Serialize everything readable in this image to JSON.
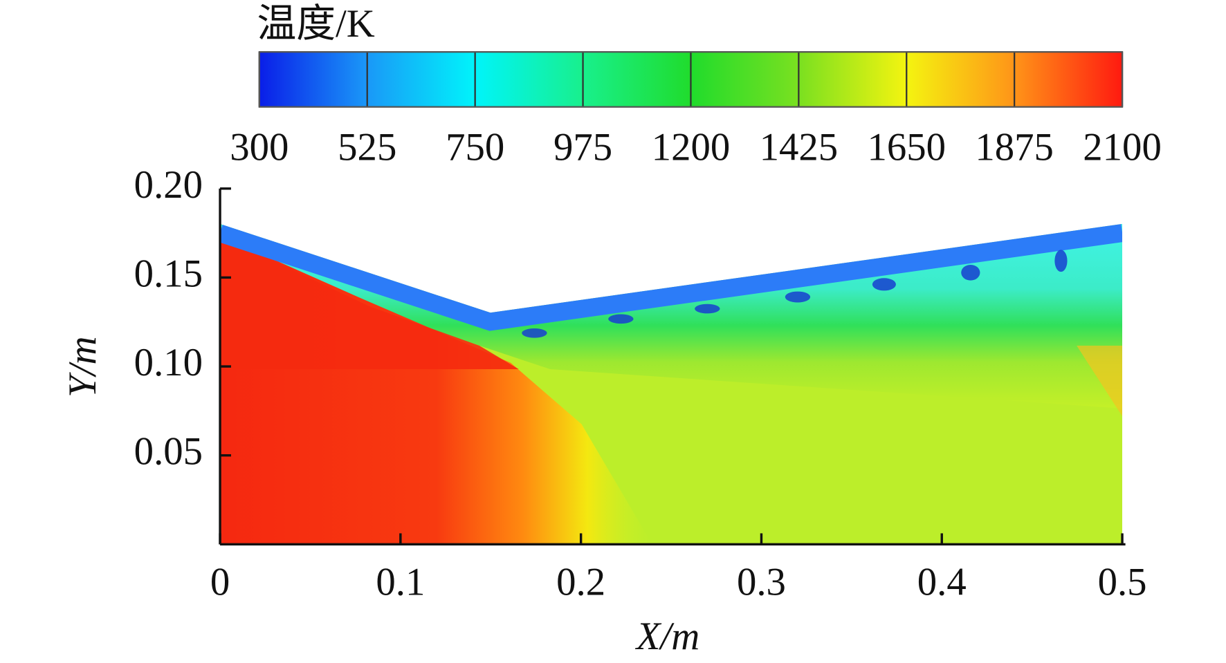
{
  "chart_data": {
    "type": "contour",
    "colorbar": {
      "title": "温度/K",
      "ticks": [
        300,
        525,
        750,
        975,
        1200,
        1425,
        1650,
        1875,
        2100
      ],
      "clim": [
        300,
        2100
      ],
      "colors": [
        "#0a1ee8",
        "#1a98f8",
        "#00f4fa",
        "#18f08c",
        "#20dc2c",
        "#7ae020",
        "#f4f410",
        "#ff9418",
        "#ff1a10"
      ]
    },
    "xlabel": "X/m",
    "ylabel": "Y/m",
    "xlim": [
      0,
      0.5
    ],
    "xticks": [
      0,
      0.1,
      0.2,
      0.3,
      0.4,
      0.5
    ],
    "ylim": [
      0,
      0.2
    ],
    "yticks": [
      0.05,
      {
        "value": 0.1,
        "label": "0.10"
      },
      0.15,
      {
        "value": 0.2,
        "label": "0.20"
      }
    ]
  }
}
